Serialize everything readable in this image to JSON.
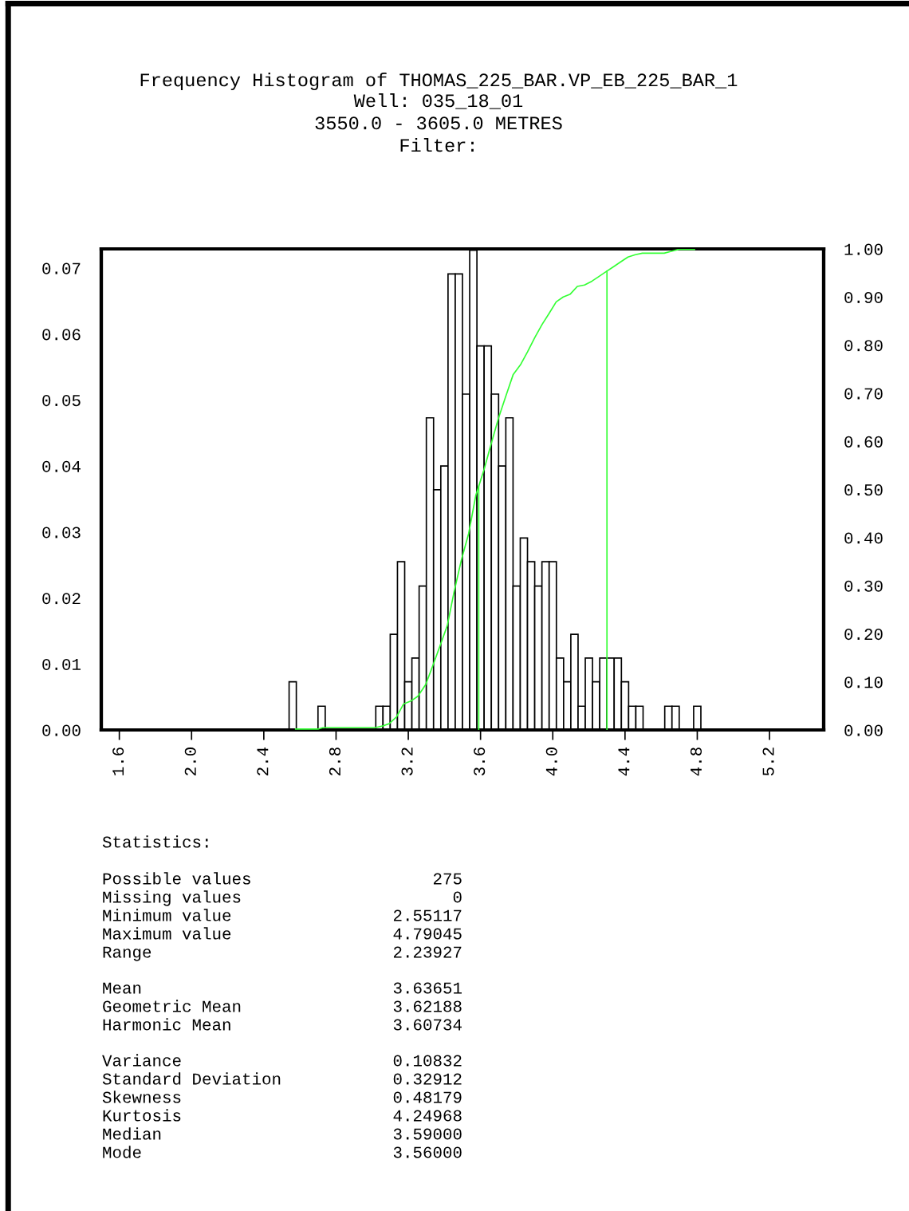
{
  "chart_data": {
    "type": "histogram",
    "title": "Frequency Histogram of THOMAS_225_BAR.VP_EB_225_BAR_1",
    "subtitle": "Well: 035_18_01\n3550.0 - 3605.0 METRES\nFilter:",
    "series": [
      {
        "color": "#ffffff",
        "bins": [
          2.54,
          2.58,
          2.62,
          2.66,
          2.7,
          2.74,
          2.78,
          2.82,
          2.86,
          2.9,
          2.94,
          2.98,
          3.02,
          3.06,
          3.1,
          3.14,
          3.18,
          3.22,
          3.26,
          3.3,
          3.34,
          3.38,
          3.42,
          3.46,
          3.5,
          3.54,
          3.58,
          3.62,
          3.66,
          3.7,
          3.74,
          3.78,
          3.82,
          3.86,
          3.9,
          3.94,
          3.98,
          4.02,
          4.06,
          4.1,
          4.14,
          4.18,
          4.22,
          4.26,
          4.3,
          4.34,
          4.38,
          4.42,
          4.46,
          4.5,
          4.54,
          4.58,
          4.62,
          4.66,
          4.7,
          4.74,
          4.78,
          4.82
        ],
        "values": [
          0.0073,
          0,
          0,
          0,
          0.0036,
          0,
          0,
          0,
          0,
          0,
          0,
          0,
          0.0036,
          0.0036,
          0.0145,
          0.0255,
          0.0073,
          0.0109,
          0.0218,
          0.0473,
          0.0364,
          0.04,
          0.0691,
          0.0691,
          0.0509,
          0.0727,
          0.0582,
          0.0582,
          0.0509,
          0.04,
          0.0473,
          0.0218,
          0.0291,
          0.0255,
          0.0218,
          0.0255,
          0.0255,
          0.0109,
          0.0073,
          0.0145,
          0.0036,
          0.0109,
          0.0073,
          0.0109,
          0.0109,
          0.0109,
          0.0073,
          0.0036,
          0.0036,
          0,
          0,
          0,
          0.0036,
          0.0036,
          0,
          0,
          0.0036
        ]
      },
      {
        "type": "line",
        "axis": "y2",
        "color": "#33ff33",
        "x": [
          2.576,
          2.703,
          2.729,
          3.02,
          3.056,
          3.094,
          3.135,
          3.174,
          3.214,
          3.253,
          3.296,
          3.336,
          3.375,
          3.416,
          3.454,
          3.495,
          3.534,
          3.574,
          3.62,
          3.659,
          3.7,
          3.742,
          3.781,
          3.821,
          3.86,
          3.901,
          3.941,
          3.98,
          4.019,
          4.058,
          4.097,
          4.136,
          4.176,
          4.217,
          4.257,
          4.296,
          4.337,
          4.376,
          4.416,
          4.457,
          4.496,
          4.617,
          4.656,
          4.697,
          4.785
        ],
        "values": [
          0.002,
          0.002,
          0.005,
          0.005,
          0.008,
          0.013,
          0.027,
          0.054,
          0.06,
          0.07,
          0.094,
          0.134,
          0.174,
          0.217,
          0.288,
          0.355,
          0.408,
          0.488,
          0.542,
          0.595,
          0.649,
          0.696,
          0.739,
          0.759,
          0.786,
          0.816,
          0.843,
          0.866,
          0.89,
          0.9,
          0.906,
          0.922,
          0.925,
          0.933,
          0.943,
          0.953,
          0.963,
          0.973,
          0.983,
          0.988,
          0.991,
          0.991,
          0.995,
          0.999,
          0.999
        ]
      }
    ],
    "ref_lines": [
      {
        "axis": "x",
        "value": 3.59,
        "color": "#33ff33"
      },
      {
        "axis": "x",
        "value": 4.3,
        "color": "#33ff33"
      }
    ],
    "xlim": [
      1.5,
      5.5
    ],
    "xticks": [
      1.6,
      {
        "value": 2,
        "label": "2.0"
      },
      2.4,
      2.8,
      3.2,
      3.6,
      {
        "value": 4,
        "label": "4.0"
      },
      4.4,
      4.8,
      5.2
    ],
    "ylim": [
      0,
      0.0729
    ],
    "yticks": [
      {
        "value": 0,
        "label": "0.00"
      },
      {
        "value": 0.01,
        "label": "0.01"
      },
      {
        "value": 0.02,
        "label": "0.02"
      },
      {
        "value": 0.03,
        "label": "0.03"
      },
      {
        "value": 0.04,
        "label": "0.04"
      },
      {
        "value": 0.05,
        "label": "0.05"
      },
      {
        "value": 0.06,
        "label": "0.06"
      },
      {
        "value": 0.07,
        "label": "0.07"
      }
    ],
    "y2lim": [
      0,
      1.0
    ],
    "y2ticks": [
      {
        "value": 0,
        "label": "0.00"
      },
      {
        "value": 0.1,
        "label": "0.10"
      },
      {
        "value": 0.2,
        "label": "0.20"
      },
      {
        "value": 0.3,
        "label": "0.30"
      },
      {
        "value": 0.4,
        "label": "0.40"
      },
      {
        "value": 0.5,
        "label": "0.50"
      },
      {
        "value": 0.6,
        "label": "0.60"
      },
      {
        "value": 0.7,
        "label": "0.70"
      },
      {
        "value": 0.8,
        "label": "0.80"
      },
      {
        "value": 0.9,
        "label": "0.90"
      },
      {
        "value": 1.0,
        "label": "1.00"
      }
    ],
    "grid": false,
    "annotations": [
      "Statistics:",
      "Possible values\t275",
      "Missing values\t0",
      "Minimum value\t2.55117",
      "Maximum value\t4.79045",
      "Range\t2.23927",
      "Mean\t3.63651",
      "Geometric Mean\t3.62188",
      "Harmonic Mean\t3.60734",
      "Variance\t0.10832",
      "Standard Deviation\t0.32912",
      "Skewness\t0.48179",
      "Kurtosis\t4.24968",
      "Median\t3.59000",
      "Mode\t3.56000"
    ]
  }
}
